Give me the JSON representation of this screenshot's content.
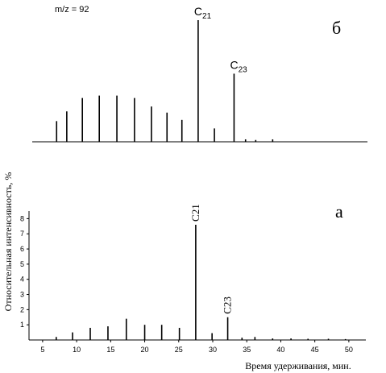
{
  "chart_data": [
    {
      "panel": "б",
      "type": "line",
      "annotation": "m/z = 92",
      "peak_labels": [
        {
          "x": 27.5,
          "base": "C",
          "sub": "21"
        },
        {
          "x": 32.8,
          "base": "C",
          "sub": "23"
        }
      ],
      "axis_color": "#000000",
      "peaks": [
        {
          "x": 6.6,
          "y": 1.7
        },
        {
          "x": 8.1,
          "y": 2.5
        },
        {
          "x": 10.4,
          "y": 3.6
        },
        {
          "x": 12.9,
          "y": 3.8
        },
        {
          "x": 15.5,
          "y": 3.8
        },
        {
          "x": 18.1,
          "y": 3.6
        },
        {
          "x": 20.6,
          "y": 2.9
        },
        {
          "x": 22.9,
          "y": 2.4
        },
        {
          "x": 25.1,
          "y": 1.8
        },
        {
          "x": 27.5,
          "y": 10.0
        },
        {
          "x": 29.9,
          "y": 1.1
        },
        {
          "x": 32.8,
          "y": 5.6
        },
        {
          "x": 34.5,
          "y": 0.2
        },
        {
          "x": 36.0,
          "y": 0.15
        },
        {
          "x": 38.5,
          "y": 0.2
        }
      ],
      "ylim": [
        0,
        10.2
      ],
      "xlim": [
        3.0,
        52.5
      ]
    },
    {
      "panel": "а",
      "type": "line",
      "ylabel": "Относительная интенсивность, %",
      "xlabel": "Время удерживания, мин.",
      "x_ticks": [
        5,
        10,
        15,
        20,
        25,
        30,
        35,
        40,
        45,
        50
      ],
      "y_ticks": [
        1,
        2,
        3,
        4,
        5,
        6,
        7,
        8
      ],
      "xlim": [
        3.0,
        52.5
      ],
      "ylim": [
        0,
        8.5
      ],
      "peak_labels": [
        {
          "x": 27.5,
          "text": "C21"
        },
        {
          "x": 32.2,
          "text": "C23"
        }
      ],
      "peaks": [
        {
          "x": 7.0,
          "y": 0.2
        },
        {
          "x": 9.4,
          "y": 0.5
        },
        {
          "x": 12.0,
          "y": 0.8
        },
        {
          "x": 14.6,
          "y": 0.9
        },
        {
          "x": 17.3,
          "y": 1.4
        },
        {
          "x": 20.0,
          "y": 1.0
        },
        {
          "x": 22.5,
          "y": 1.0
        },
        {
          "x": 25.1,
          "y": 0.8
        },
        {
          "x": 27.5,
          "y": 7.6
        },
        {
          "x": 29.9,
          "y": 0.45
        },
        {
          "x": 32.2,
          "y": 1.5
        },
        {
          "x": 34.3,
          "y": 0.15
        },
        {
          "x": 36.2,
          "y": 0.2
        },
        {
          "x": 38.8,
          "y": 0.1
        },
        {
          "x": 41.5,
          "y": 0.1
        },
        {
          "x": 44.0,
          "y": 0.08
        },
        {
          "x": 47.0,
          "y": 0.08
        },
        {
          "x": 49.5,
          "y": 0.06
        }
      ]
    }
  ]
}
